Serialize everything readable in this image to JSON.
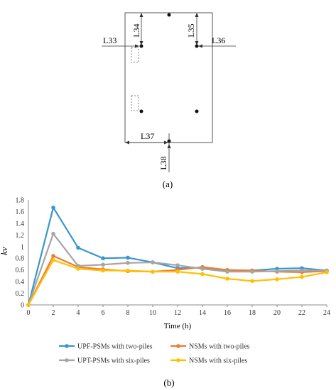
{
  "panel_a": {
    "caption": "(a)",
    "labels": {
      "l33": "L33",
      "l34": "L34",
      "l35": "L35",
      "l36": "L36",
      "l37": "L37",
      "l38": "L38"
    }
  },
  "panel_b": {
    "caption": "(b)"
  },
  "chart_data": {
    "type": "line",
    "title": "",
    "xlabel": "Time (h)",
    "ylabel": "kv",
    "x": [
      0,
      2,
      4,
      6,
      8,
      10,
      12,
      14,
      16,
      18,
      20,
      22,
      24
    ],
    "xlim": [
      0,
      24
    ],
    "ylim": [
      0,
      1.8
    ],
    "xticks": [
      "0",
      "2",
      "4",
      "6",
      "8",
      "10",
      "12",
      "14",
      "16",
      "18",
      "20",
      "22",
      "24"
    ],
    "yticks": [
      "0",
      "0.2",
      "0.4",
      "0.6",
      "0.8",
      "1",
      "1.2",
      "1.4",
      "1.6",
      "1.8"
    ],
    "grid": false,
    "legend_position": "bottom",
    "series": [
      {
        "name": "UPF-PSMs with two-piles",
        "color": "#3a95d0",
        "values": [
          0,
          1.67,
          0.98,
          0.8,
          0.81,
          0.73,
          0.63,
          0.64,
          0.59,
          0.59,
          0.62,
          0.63,
          0.59
        ]
      },
      {
        "name": "NSMs with two-piles",
        "color": "#ed7d31",
        "values": [
          0,
          0.84,
          0.65,
          0.61,
          0.58,
          0.57,
          0.6,
          0.65,
          0.6,
          0.59,
          0.57,
          0.56,
          0.58
        ]
      },
      {
        "name": "UPT-PSMs with six-piles",
        "color": "#a5a5a5",
        "values": [
          0,
          1.22,
          0.67,
          0.69,
          0.72,
          0.73,
          0.68,
          0.62,
          0.57,
          0.57,
          0.58,
          0.59,
          0.59
        ]
      },
      {
        "name": "NSMs with six-piles",
        "color": "#ffc000",
        "values": [
          0,
          0.77,
          0.62,
          0.59,
          0.59,
          0.57,
          0.57,
          0.53,
          0.45,
          0.41,
          0.44,
          0.48,
          0.56
        ]
      }
    ]
  }
}
